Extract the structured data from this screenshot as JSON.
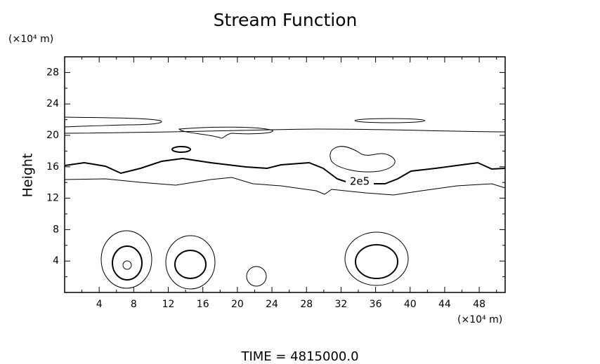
{
  "chart_data": {
    "type": "contour",
    "title": "Stream Function",
    "x_unit_label": "(×10⁴ m)",
    "y_unit_label": "(×10⁴ m)",
    "y_label": "Height",
    "footer": "TIME  =  4815000.0",
    "contour_label": "2e5",
    "xlim": [
      0,
      51
    ],
    "ylim": [
      0,
      30
    ],
    "xticks": [
      4,
      8,
      12,
      16,
      20,
      24,
      28,
      32,
      36,
      40,
      44,
      48
    ],
    "yticks": [
      4,
      8,
      12,
      16,
      20,
      24,
      28
    ]
  }
}
